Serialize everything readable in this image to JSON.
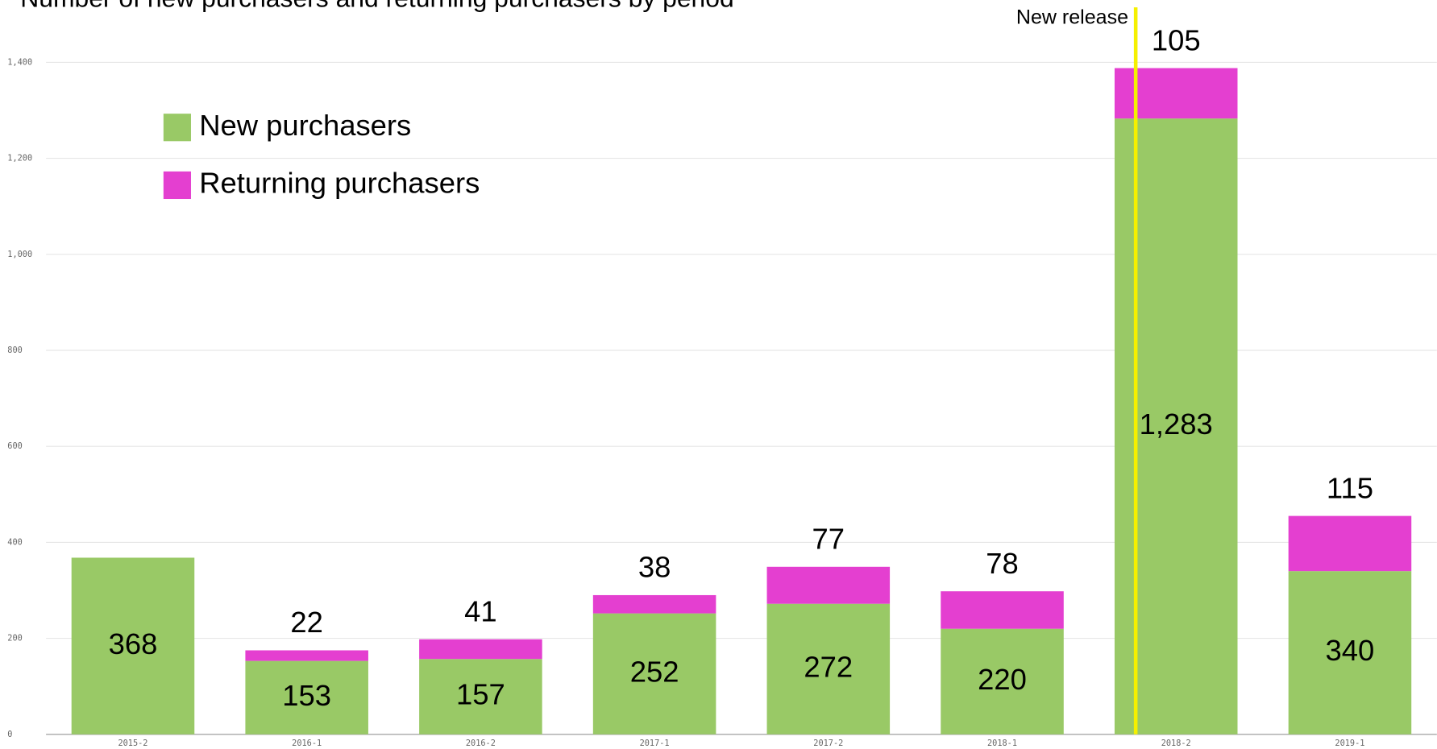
{
  "chart_data": {
    "type": "stacked_bar",
    "title": "Number of new purchasers and returning purchasers by period",
    "categories": [
      "2015-2",
      "2016-1",
      "2016-2",
      "2017-1",
      "2017-2",
      "2018-1",
      "2018-2",
      "2019-1"
    ],
    "series": [
      {
        "name": "New purchasers",
        "color": "#99c966",
        "values": [
          368,
          153,
          157,
          252,
          272,
          220,
          1283,
          340
        ],
        "value_labels": [
          "368",
          "153",
          "157",
          "252",
          "272",
          "220",
          "1,283",
          "340"
        ]
      },
      {
        "name": "Returning purchasers",
        "color": "#e43fd0",
        "values": [
          null,
          22,
          41,
          38,
          77,
          78,
          105,
          115
        ]
      }
    ],
    "ylim": [
      0,
      1400
    ],
    "yticks": [
      0,
      200,
      400,
      600,
      800,
      {
        "value": 1000,
        "label": "1,000"
      },
      {
        "value": 1200,
        "label": "1,200"
      },
      {
        "value": 1400,
        "label": "1,400"
      }
    ],
    "grid": true,
    "legend": "upper left",
    "annotation": {
      "text": "New release",
      "x": "2018-2",
      "color": "#f5f000"
    }
  }
}
